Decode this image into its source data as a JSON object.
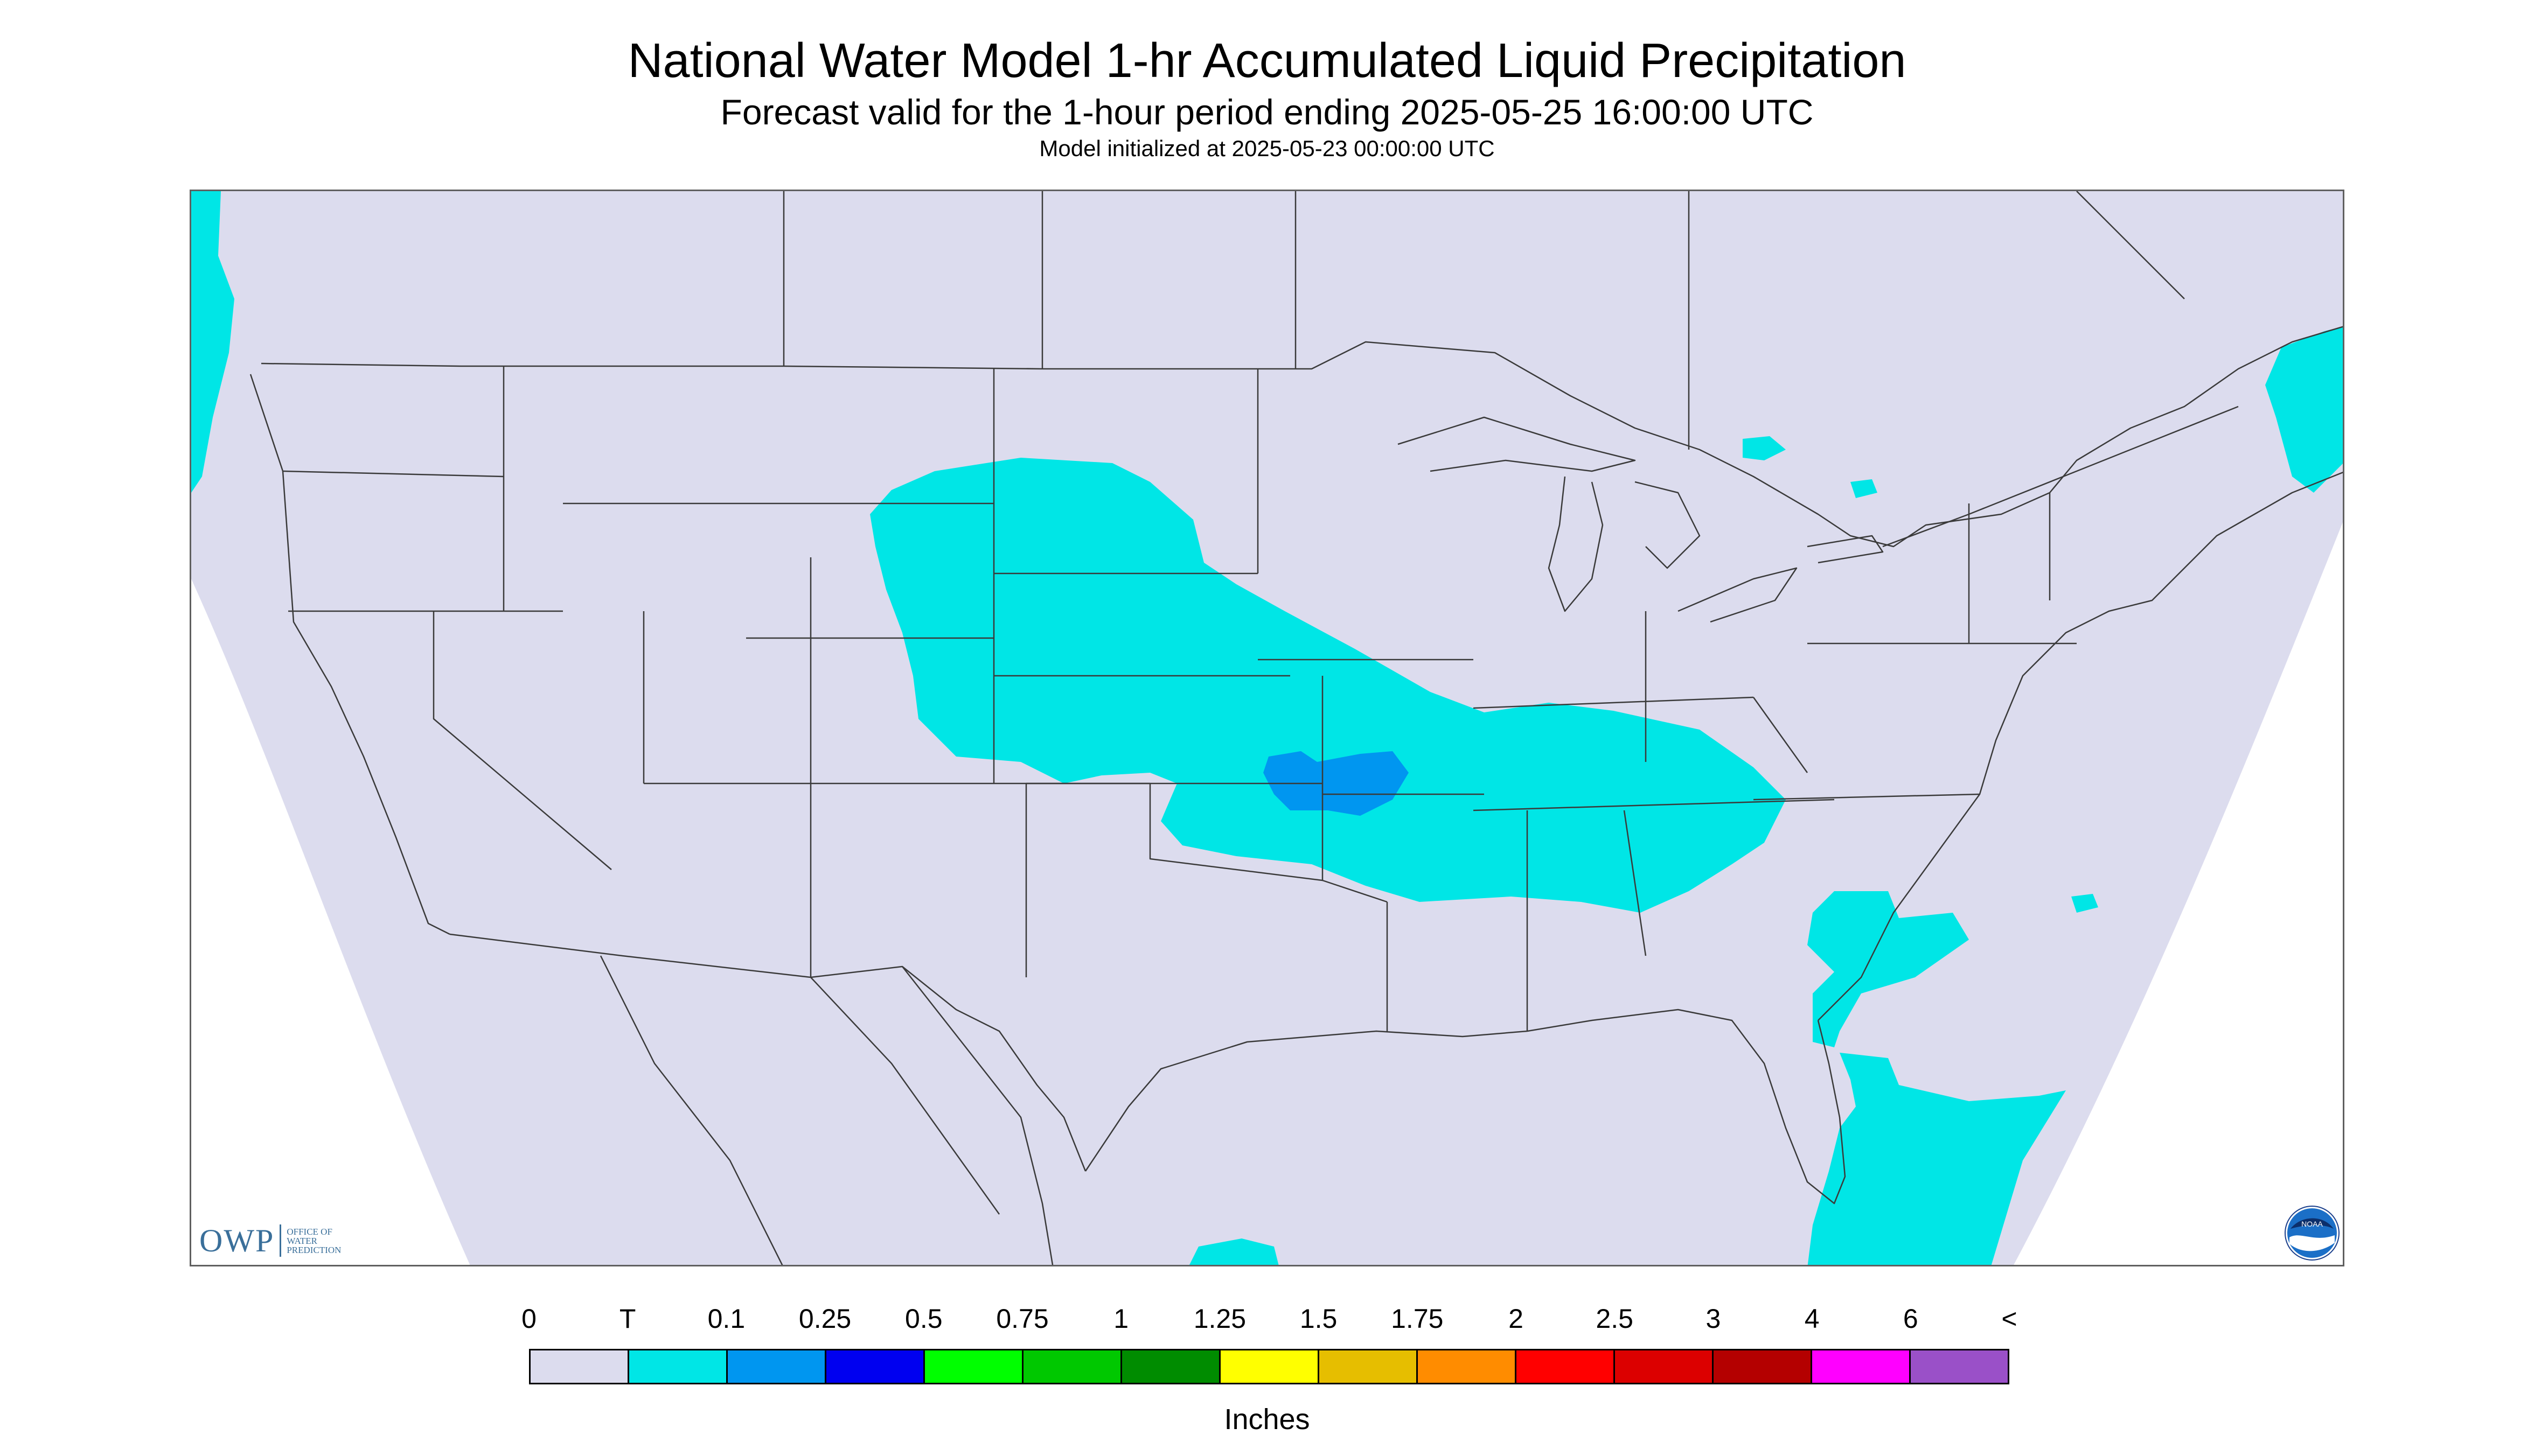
{
  "header": {
    "title": "National Water Model 1-hr Accumulated Liquid Precipitation",
    "subtitle": "Forecast valid for the 1-hour period ending 2025-05-25 16:00:00 UTC",
    "init_line": "Model initialized at 2025-05-23 00:00:00 UTC"
  },
  "colors": {
    "outside_domain": "#ffffff",
    "no_precip": "#dcdcee",
    "trace": "#00e6e6",
    "light_blue": "#0096f0",
    "boundary": "#3a3a3a",
    "owp_brand": "#3a6f9a"
  },
  "legend": {
    "tick_labels": [
      "0",
      "T",
      "0.1",
      "0.25",
      "0.5",
      "0.75",
      "1",
      "1.25",
      "1.5",
      "1.75",
      "2",
      "2.5",
      "3",
      "4",
      "6",
      "<"
    ],
    "colors": [
      "#dcdcee",
      "#00e6e6",
      "#0096f0",
      "#0000f0",
      "#00ff00",
      "#00c800",
      "#008c00",
      "#ffff00",
      "#e6be00",
      "#ff8c00",
      "#ff0000",
      "#dc0000",
      "#b40000",
      "#ff00ff",
      "#9a50c8"
    ],
    "units": "Inches"
  },
  "logos": {
    "owp_letters": "OWP",
    "owp_text": "OFFICE OF WATER PREDICTION",
    "noaa_text": "NOAA"
  }
}
